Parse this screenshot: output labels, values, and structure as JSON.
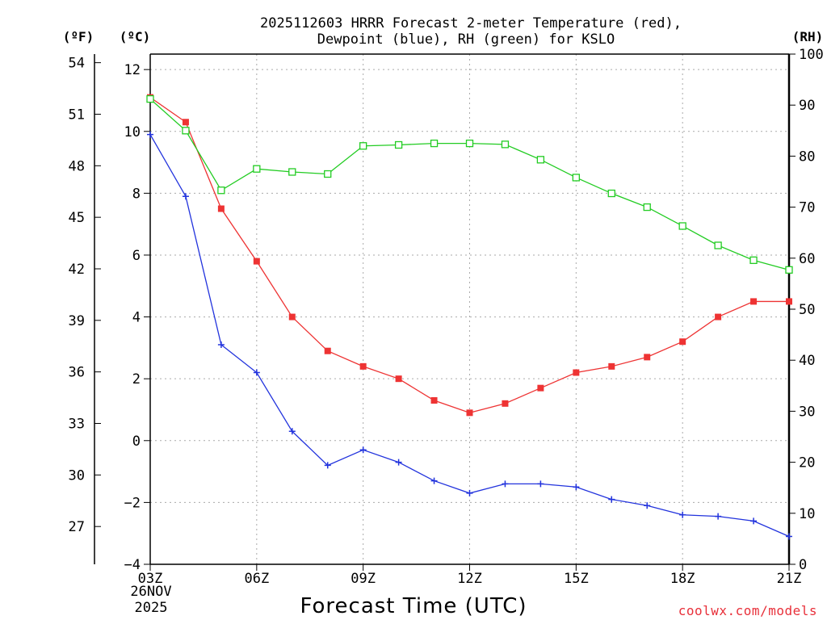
{
  "chart_data": {
    "type": "line",
    "title_line1": "2025112603 HRRR Forecast 2-meter Temperature (red),",
    "title_line2": "Dewpoint (blue), RH (green) for KSLO",
    "xlabel": "Forecast Time (UTC)",
    "credit": "coolwx.com/models",
    "left_outer_unit": "(ºF)",
    "left_inner_unit": "(ºC)",
    "right_unit": "(RH)",
    "x_hours": [
      3,
      4,
      5,
      6,
      7,
      8,
      9,
      10,
      11,
      12,
      13,
      14,
      15,
      16,
      17,
      18,
      19,
      20,
      21
    ],
    "x_ticks": [
      {
        "hour": 3,
        "label": "03Z"
      },
      {
        "hour": 6,
        "label": "06Z"
      },
      {
        "hour": 9,
        "label": "09Z"
      },
      {
        "hour": 12,
        "label": "12Z"
      },
      {
        "hour": 15,
        "label": "15Z"
      },
      {
        "hour": 18,
        "label": "18Z"
      },
      {
        "hour": 21,
        "label": "21Z"
      }
    ],
    "date_line1": "26NOV",
    "date_line2": "2025",
    "ylim_c": [
      -4,
      12.5
    ],
    "c_ticks": [
      -4,
      -2,
      0,
      2,
      4,
      6,
      8,
      10,
      12
    ],
    "c_tick_labels": [
      "−4",
      "−2",
      "0",
      "2",
      "4",
      "6",
      "8",
      "10",
      "12"
    ],
    "f_ticks": [
      27,
      30,
      33,
      36,
      39,
      42,
      45,
      48,
      51,
      54
    ],
    "rh_lim": [
      0,
      100
    ],
    "rh_ticks": [
      0,
      10,
      20,
      30,
      40,
      50,
      60,
      70,
      80,
      90,
      100
    ],
    "series": [
      {
        "name": "Temperature",
        "axis": "C",
        "color": "#ee3333",
        "marker": "filled-square",
        "values": [
          11.1,
          10.3,
          7.5,
          5.8,
          4.0,
          2.9,
          2.4,
          2.0,
          1.3,
          0.9,
          1.2,
          1.7,
          2.2,
          2.4,
          2.7,
          3.2,
          4.0,
          4.5,
          4.5
        ]
      },
      {
        "name": "Dewpoint",
        "axis": "C",
        "color": "#2233dd",
        "marker": "plus",
        "values": [
          9.9,
          7.9,
          3.1,
          2.2,
          0.3,
          -0.8,
          -0.3,
          -0.7,
          -1.3,
          -1.7,
          -1.4,
          -1.4,
          -1.5,
          -1.9,
          -2.1,
          -2.4,
          -2.45,
          -2.6,
          -3.1
        ]
      },
      {
        "name": "RH",
        "axis": "RH",
        "color": "#22cc22",
        "marker": "open-square",
        "values": [
          91.2,
          85.0,
          73.3,
          77.5,
          76.9,
          76.5,
          82.0,
          82.2,
          82.5,
          82.5,
          82.3,
          79.3,
          75.8,
          72.7,
          70.0,
          66.3,
          62.5,
          59.6,
          57.7
        ]
      }
    ]
  }
}
